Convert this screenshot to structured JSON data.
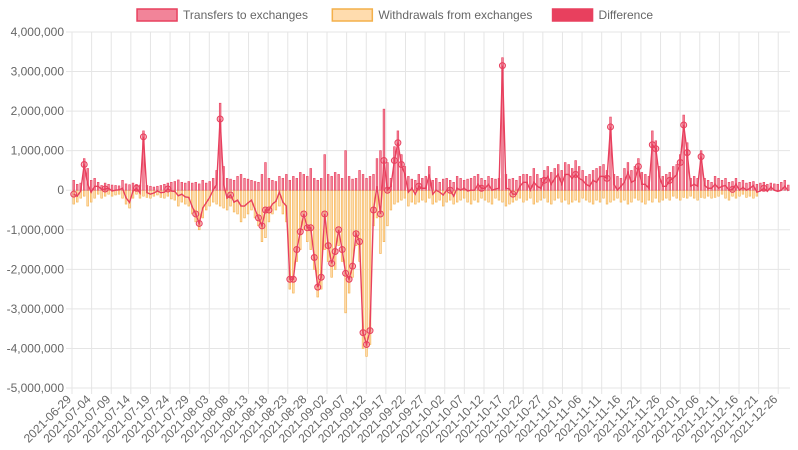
{
  "colors": {
    "transfers": "#e8415f",
    "transfers_fill": "rgba(240,110,135,0.85)",
    "withdrawals": "#f4b04a",
    "withdrawals_fill": "rgba(255,214,160,0.85)",
    "difference": "#e8405e",
    "grid": "#e5e5e5",
    "zero_line": "#cccccc"
  },
  "legend": [
    {
      "key": "transfers",
      "label": "Transfers to exchanges"
    },
    {
      "key": "withdrawals",
      "label": "Withdrawals from exchanges"
    },
    {
      "key": "difference",
      "label": "Difference"
    }
  ],
  "chart_data": {
    "type": "bar",
    "x_start": "2021-06-29",
    "x_end": "2021-12-29",
    "x_tick_labels": [
      "2021-06-29",
      "2021-07-04",
      "2021-07-09",
      "2021-07-14",
      "2021-07-19",
      "2021-07-24",
      "2021-07-29",
      "2021-08-03",
      "2021-08-08",
      "2021-08-13",
      "2021-08-18",
      "2021-08-23",
      "2021-08-28",
      "2021-09-02",
      "2021-09-07",
      "2021-09-12",
      "2021-09-17",
      "2021-09-22",
      "2021-09-27",
      "2021-10-02",
      "2021-10-07",
      "2021-10-12",
      "2021-10-17",
      "2021-10-22",
      "2021-10-27",
      "2021-11-01",
      "2021-11-06",
      "2021-11-11",
      "2021-11-16",
      "2021-11-21",
      "2021-11-26",
      "2021-12-01",
      "2021-12-06",
      "2021-12-11",
      "2021-12-16",
      "2021-12-21",
      "2021-12-26"
    ],
    "y_tick_labels": [
      "4,000,000",
      "3,000,000",
      "2,000,000",
      "1,000,000",
      "0",
      "-1,000,000",
      "-2,000,000",
      "-3,000,000",
      "-4,000,000",
      "-5,000,000"
    ],
    "ylim": [
      -5000000,
      4000000
    ],
    "grid": true,
    "legend_position": "top",
    "series": [
      {
        "name": "Transfers to exchanges",
        "type": "bar",
        "values": [
          250000,
          150000,
          180000,
          800000,
          550000,
          250000,
          300000,
          200000,
          120000,
          180000,
          150000,
          130000,
          120000,
          110000,
          250000,
          160000,
          140000,
          180000,
          150000,
          130000,
          1500000,
          120000,
          100000,
          80000,
          100000,
          120000,
          150000,
          180000,
          200000,
          220000,
          260000,
          200000,
          180000,
          220000,
          180000,
          200000,
          160000,
          250000,
          180000,
          220000,
          300000,
          500000,
          2200000,
          600000,
          300000,
          280000,
          250000,
          350000,
          400000,
          300000,
          280000,
          250000,
          220000,
          200000,
          400000,
          700000,
          300000,
          250000,
          220000,
          350000,
          300000,
          400000,
          250000,
          350000,
          300000,
          450000,
          400000,
          350000,
          550000,
          300000,
          250000,
          300000,
          900000,
          400000,
          350000,
          450000,
          400000,
          300000,
          1000000,
          350000,
          280000,
          300000,
          500000,
          400000,
          300000,
          350000,
          400000,
          800000,
          1000000,
          2050000,
          700000,
          300000,
          1100000,
          1500000,
          900000,
          600000,
          350000,
          280000,
          250000,
          400000,
          300000,
          350000,
          600000,
          250000,
          300000,
          200000,
          280000,
          300000,
          250000,
          200000,
          350000,
          300000,
          250000,
          280000,
          300000,
          350000,
          400000,
          300000,
          250000,
          350000,
          300000,
          280000,
          300000,
          3350000,
          400000,
          280000,
          300000,
          250000,
          350000,
          400000,
          400000,
          350000,
          550000,
          400000,
          300000,
          500000,
          600000,
          450000,
          550000,
          650000,
          500000,
          700000,
          650000,
          550000,
          750000,
          600000,
          500000,
          350000,
          400000,
          500000,
          550000,
          600000,
          650000,
          500000,
          1850000,
          400000,
          350000,
          300000,
          550000,
          700000,
          500000,
          600000,
          800000,
          450000,
          400000,
          350000,
          1500000,
          1250000,
          600000,
          350000,
          400000,
          450000,
          600000,
          650000,
          900000,
          1900000,
          1200000,
          300000,
          350000,
          300000,
          1000000,
          300000,
          250000,
          200000,
          350000,
          300000,
          250000,
          300000,
          200000,
          220000,
          300000,
          200000,
          250000,
          180000,
          200000,
          220000,
          150000,
          180000,
          200000,
          150000,
          180000,
          160000,
          150000,
          200000,
          250000,
          130000
        ]
      },
      {
        "name": "Withdrawals from exchanges",
        "type": "bar",
        "values": [
          -350000,
          -300000,
          -200000,
          -150000,
          -400000,
          -300000,
          -200000,
          -100000,
          -200000,
          -150000,
          -100000,
          -150000,
          -120000,
          -100000,
          -200000,
          -350000,
          -450000,
          -200000,
          -100000,
          -200000,
          -150000,
          -180000,
          -200000,
          -150000,
          -120000,
          -180000,
          -200000,
          -150000,
          -220000,
          -250000,
          -400000,
          -300000,
          -350000,
          -400000,
          -600000,
          -800000,
          -1000000,
          -700000,
          -500000,
          -400000,
          -300000,
          -350000,
          -400000,
          -450000,
          -500000,
          -400000,
          -550000,
          -600000,
          -800000,
          -700000,
          -600000,
          -500000,
          -700000,
          -900000,
          -1300000,
          -1200000,
          -800000,
          -600000,
          -500000,
          -400000,
          -600000,
          -800000,
          -2500000,
          -2600000,
          -1800000,
          -1500000,
          -1000000,
          -1300000,
          -1500000,
          -2000000,
          -2700000,
          -2500000,
          -1500000,
          -1800000,
          -2200000,
          -2000000,
          -1400000,
          -1800000,
          -3100000,
          -2600000,
          -2200000,
          -1400000,
          -1800000,
          -4000000,
          -4200000,
          -3900000,
          -900000,
          -700000,
          -1600000,
          -1300000,
          -900000,
          -500000,
          -350000,
          -300000,
          -250000,
          -200000,
          -400000,
          -300000,
          -350000,
          -300000,
          -250000,
          -300000,
          -200000,
          -350000,
          -300000,
          -250000,
          -400000,
          -300000,
          -250000,
          -350000,
          -300000,
          -250000,
          -200000,
          -300000,
          -350000,
          -250000,
          -300000,
          -200000,
          -250000,
          -300000,
          -350000,
          -200000,
          -250000,
          -300000,
          -400000,
          -350000,
          -300000,
          -250000,
          -200000,
          -300000,
          -250000,
          -200000,
          -350000,
          -300000,
          -250000,
          -200000,
          -300000,
          -350000,
          -250000,
          -200000,
          -300000,
          -250000,
          -350000,
          -300000,
          -250000,
          -300000,
          -200000,
          -250000,
          -300000,
          -350000,
          -250000,
          -300000,
          -200000,
          -350000,
          -300000,
          -250000,
          -200000,
          -300000,
          -250000,
          -350000,
          -300000,
          -200000,
          -250000,
          -300000,
          -350000,
          -250000,
          -300000,
          -200000,
          -300000,
          -250000,
          -200000,
          -250000,
          -150000,
          -200000,
          -250000,
          -180000,
          -200000,
          -150000,
          -200000,
          -250000,
          -180000,
          -200000,
          -150000,
          -200000,
          -180000,
          -150000,
          -100000,
          -200000,
          -250000,
          -150000,
          -200000,
          -150000,
          -100000,
          -180000,
          -150000,
          -200000,
          -150000
        ]
      },
      {
        "name": "Difference",
        "type": "line",
        "values": [
          -100000,
          -150000,
          -20000,
          650000,
          150000,
          -50000,
          100000,
          100000,
          20000,
          30000,
          50000,
          -20000,
          0,
          10000,
          50000,
          -190000,
          -310000,
          -20000,
          50000,
          -70000,
          1350000,
          -60000,
          -100000,
          -70000,
          -20000,
          -60000,
          -50000,
          30000,
          -20000,
          -30000,
          -140000,
          -100000,
          -170000,
          -180000,
          -420000,
          -600000,
          -840000,
          -450000,
          -320000,
          -180000,
          0,
          150000,
          1800000,
          150000,
          -200000,
          -120000,
          -300000,
          -250000,
          -400000,
          -400000,
          -320000,
          -250000,
          -480000,
          -700000,
          -900000,
          -500000,
          -500000,
          -350000,
          -280000,
          -50000,
          -300000,
          -400000,
          -2250000,
          -2250000,
          -1500000,
          -1050000,
          -600000,
          -950000,
          -950000,
          -1700000,
          -2450000,
          -2200000,
          -600000,
          -1400000,
          -1850000,
          -1550000,
          -1000000,
          -1500000,
          -2100000,
          -2250000,
          -1920000,
          -1100000,
          -1300000,
          -3600000,
          -3900000,
          -3550000,
          -500000,
          100000,
          -600000,
          750000,
          0,
          100000,
          750000,
          1200000,
          650000,
          400000,
          -50000,
          50000,
          -100000,
          100000,
          50000,
          50000,
          400000,
          -100000,
          0,
          -50000,
          -120000,
          0,
          0,
          -150000,
          50000,
          0,
          50000,
          -20000,
          0,
          0,
          150000,
          50000,
          50000,
          150000,
          0,
          30000,
          50000,
          3150000,
          50000,
          30000,
          -100000,
          -100000,
          100000,
          200000,
          200000,
          0,
          200000,
          100000,
          50000,
          250000,
          350000,
          150000,
          300000,
          400000,
          150000,
          400000,
          400000,
          300000,
          400000,
          300000,
          250000,
          150000,
          100000,
          250000,
          200000,
          350000,
          350000,
          300000,
          1600000,
          150000,
          0,
          100000,
          200000,
          450000,
          200000,
          250000,
          600000,
          150000,
          150000,
          50000,
          1150000,
          1050000,
          350000,
          100000,
          100000,
          250000,
          300000,
          400000,
          700000,
          1650000,
          950000,
          100000,
          150000,
          100000,
          850000,
          120000,
          50000,
          50000,
          150000,
          50000,
          100000,
          120000,
          0,
          20000,
          150000,
          0,
          70000,
          0,
          50000,
          120000,
          -50000,
          -20000,
          50000,
          -30000,
          80000,
          0,
          -30000,
          0,
          100000,
          -20000
        ]
      }
    ]
  }
}
